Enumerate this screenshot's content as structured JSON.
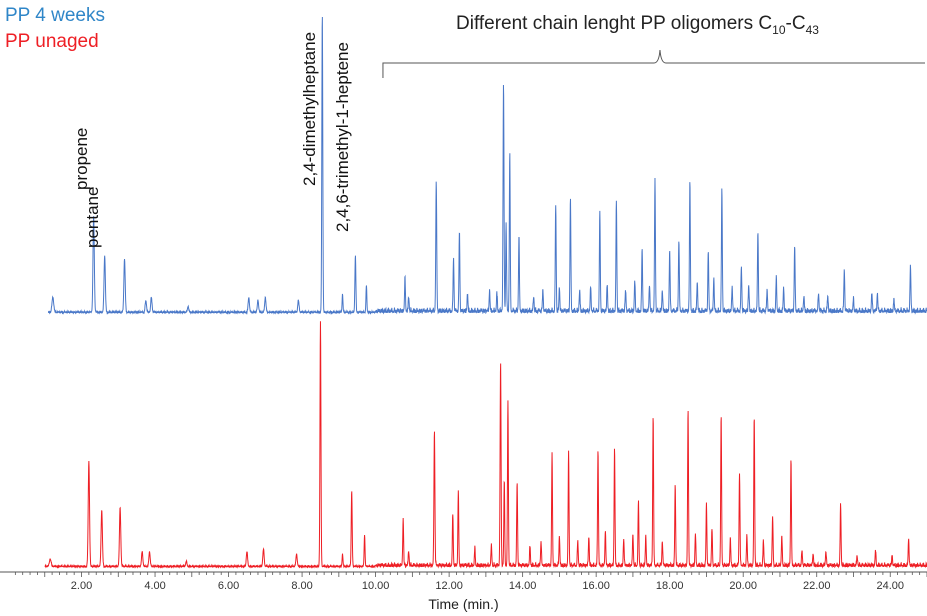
{
  "legend": {
    "series_aged": "PP 4 weeks",
    "series_unaged": "PP unaged"
  },
  "annotations": {
    "oligomer_range": {
      "text_main": "Different chain lenght PP oligomers C",
      "sub1": "10",
      "dash": "-C",
      "sub2": "43",
      "x_range": [
        10.2,
        25.0
      ]
    },
    "peaks": [
      {
        "label": "propene",
        "x": 2.33
      },
      {
        "label": "pentane",
        "x": 2.63
      },
      {
        "label": "2,4-dimethylheptane",
        "x": 8.55
      },
      {
        "label": "2,4,6-trimethyl-1-heptene",
        "x": 9.45
      }
    ]
  },
  "colors": {
    "aged": "#4a78c8",
    "unaged": "#ee1f25",
    "legend_aged": "#2f86c8",
    "legend_unaged": "#ee1f25",
    "axis": "#555555"
  },
  "chart_data": {
    "type": "line",
    "xlabel": "Time (min.)",
    "ylabel": "",
    "xlim": [
      0,
      25
    ],
    "grid": false,
    "legend_position": "top-left",
    "xticks": [
      2.0,
      4.0,
      6.0,
      8.0,
      10.0,
      12.0,
      14.0,
      16.0,
      18.0,
      20.0,
      22.0,
      24.0
    ],
    "xtick_labels": [
      "2.00",
      "4.00",
      "6.00",
      "8.00",
      "10.00",
      "12.00",
      "14.00",
      "16.00",
      "18.00",
      "20.00",
      "22.00",
      "24.00"
    ],
    "series": [
      {
        "name": "PP 4 weeks",
        "start_time": 1.1,
        "baseline_relative": 0.0,
        "peaks": [
          [
            1.22,
            0.05,
            0.04
          ],
          [
            2.33,
            0.32,
            0.03
          ],
          [
            2.63,
            0.19,
            0.03
          ],
          [
            3.17,
            0.18,
            0.03
          ],
          [
            3.75,
            0.04,
            0.03
          ],
          [
            3.9,
            0.05,
            0.03
          ],
          [
            4.9,
            0.02,
            0.03
          ],
          [
            6.55,
            0.05,
            0.03
          ],
          [
            6.8,
            0.04,
            0.03
          ],
          [
            7.0,
            0.05,
            0.03
          ],
          [
            7.9,
            0.04,
            0.03
          ],
          [
            8.55,
            1.0,
            0.022
          ],
          [
            9.1,
            0.06,
            0.02
          ],
          [
            9.45,
            0.19,
            0.022
          ],
          [
            9.75,
            0.09,
            0.02
          ],
          [
            10.8,
            0.11,
            0.02
          ],
          [
            11.65,
            0.43,
            0.022
          ],
          [
            12.12,
            0.18,
            0.02
          ],
          [
            12.28,
            0.27,
            0.02
          ],
          [
            13.3,
            0.06,
            0.02
          ],
          [
            13.48,
            0.76,
            0.022
          ],
          [
            13.55,
            0.29,
            0.02
          ],
          [
            13.65,
            0.53,
            0.02
          ],
          [
            13.9,
            0.25,
            0.02
          ],
          [
            14.9,
            0.36,
            0.02
          ],
          [
            15.3,
            0.38,
            0.02
          ],
          [
            16.1,
            0.33,
            0.02
          ],
          [
            16.55,
            0.37,
            0.02
          ],
          [
            17.25,
            0.21,
            0.02
          ],
          [
            17.6,
            0.44,
            0.02
          ],
          [
            18.0,
            0.2,
            0.02
          ],
          [
            18.25,
            0.24,
            0.02
          ],
          [
            18.55,
            0.43,
            0.02
          ],
          [
            19.05,
            0.2,
            0.02
          ],
          [
            19.42,
            0.41,
            0.02
          ],
          [
            19.95,
            0.15,
            0.02
          ],
          [
            20.4,
            0.27,
            0.02
          ],
          [
            20.9,
            0.11,
            0.02
          ],
          [
            21.4,
            0.22,
            0.02
          ],
          [
            22.05,
            0.06,
            0.02
          ],
          [
            22.75,
            0.14,
            0.02
          ],
          [
            23.5,
            0.06,
            0.02
          ],
          [
            23.65,
            0.06,
            0.02
          ],
          [
            24.55,
            0.15,
            0.02
          ],
          [
            10.9,
            0.05,
            0.02
          ],
          [
            12.5,
            0.06,
            0.02
          ],
          [
            13.1,
            0.07,
            0.02
          ],
          [
            14.3,
            0.05,
            0.02
          ],
          [
            14.55,
            0.07,
            0.02
          ],
          [
            15.0,
            0.08,
            0.02
          ],
          [
            15.55,
            0.07,
            0.02
          ],
          [
            15.85,
            0.08,
            0.02
          ],
          [
            16.3,
            0.09,
            0.02
          ],
          [
            16.8,
            0.07,
            0.02
          ],
          [
            17.05,
            0.1,
            0.02
          ],
          [
            17.45,
            0.09,
            0.02
          ],
          [
            17.8,
            0.07,
            0.02
          ],
          [
            18.75,
            0.1,
            0.02
          ],
          [
            19.2,
            0.11,
            0.02
          ],
          [
            19.7,
            0.08,
            0.02
          ],
          [
            20.15,
            0.09,
            0.02
          ],
          [
            20.65,
            0.07,
            0.02
          ],
          [
            21.1,
            0.08,
            0.02
          ],
          [
            21.65,
            0.05,
            0.02
          ],
          [
            22.3,
            0.05,
            0.02
          ],
          [
            23.0,
            0.04,
            0.02
          ],
          [
            24.1,
            0.04,
            0.02
          ]
        ]
      },
      {
        "name": "PP unaged",
        "start_time": 1.0,
        "baseline_relative": 0.0,
        "peaks": [
          [
            1.15,
            0.03,
            0.04
          ],
          [
            2.2,
            0.43,
            0.03
          ],
          [
            2.55,
            0.23,
            0.03
          ],
          [
            3.05,
            0.24,
            0.03
          ],
          [
            3.65,
            0.06,
            0.03
          ],
          [
            3.85,
            0.06,
            0.03
          ],
          [
            4.85,
            0.02,
            0.03
          ],
          [
            6.5,
            0.06,
            0.03
          ],
          [
            6.95,
            0.07,
            0.03
          ],
          [
            7.85,
            0.05,
            0.03
          ],
          [
            8.5,
            1.0,
            0.022
          ],
          [
            9.1,
            0.05,
            0.02
          ],
          [
            9.35,
            0.31,
            0.022
          ],
          [
            9.7,
            0.13,
            0.02
          ],
          [
            10.75,
            0.19,
            0.02
          ],
          [
            11.6,
            0.55,
            0.022
          ],
          [
            12.1,
            0.21,
            0.02
          ],
          [
            12.25,
            0.3,
            0.02
          ],
          [
            13.4,
            0.83,
            0.022
          ],
          [
            13.5,
            0.35,
            0.02
          ],
          [
            13.6,
            0.67,
            0.02
          ],
          [
            13.85,
            0.34,
            0.02
          ],
          [
            14.8,
            0.45,
            0.02
          ],
          [
            15.25,
            0.46,
            0.02
          ],
          [
            16.05,
            0.47,
            0.02
          ],
          [
            16.5,
            0.48,
            0.02
          ],
          [
            17.15,
            0.26,
            0.02
          ],
          [
            17.55,
            0.61,
            0.02
          ],
          [
            18.15,
            0.33,
            0.02
          ],
          [
            18.5,
            0.64,
            0.02
          ],
          [
            19.0,
            0.25,
            0.02
          ],
          [
            19.4,
            0.61,
            0.02
          ],
          [
            19.9,
            0.38,
            0.02
          ],
          [
            20.3,
            0.61,
            0.02
          ],
          [
            20.8,
            0.2,
            0.02
          ],
          [
            21.3,
            0.43,
            0.02
          ],
          [
            21.9,
            0.05,
            0.02
          ],
          [
            22.65,
            0.25,
            0.02
          ],
          [
            23.6,
            0.06,
            0.02
          ],
          [
            24.5,
            0.11,
            0.02
          ],
          [
            10.9,
            0.06,
            0.02
          ],
          [
            12.7,
            0.07,
            0.02
          ],
          [
            13.15,
            0.08,
            0.02
          ],
          [
            14.2,
            0.08,
            0.02
          ],
          [
            14.5,
            0.1,
            0.02
          ],
          [
            15.0,
            0.12,
            0.02
          ],
          [
            15.5,
            0.1,
            0.02
          ],
          [
            15.8,
            0.12,
            0.02
          ],
          [
            16.25,
            0.14,
            0.02
          ],
          [
            16.75,
            0.11,
            0.02
          ],
          [
            17.0,
            0.13,
            0.02
          ],
          [
            17.35,
            0.12,
            0.02
          ],
          [
            17.8,
            0.1,
            0.02
          ],
          [
            18.7,
            0.13,
            0.02
          ],
          [
            19.15,
            0.15,
            0.02
          ],
          [
            19.65,
            0.11,
            0.02
          ],
          [
            20.1,
            0.12,
            0.02
          ],
          [
            20.55,
            0.1,
            0.02
          ],
          [
            21.05,
            0.12,
            0.02
          ],
          [
            21.6,
            0.06,
            0.02
          ],
          [
            22.25,
            0.06,
            0.02
          ],
          [
            23.1,
            0.04,
            0.02
          ],
          [
            24.05,
            0.04,
            0.02
          ]
        ]
      }
    ]
  }
}
